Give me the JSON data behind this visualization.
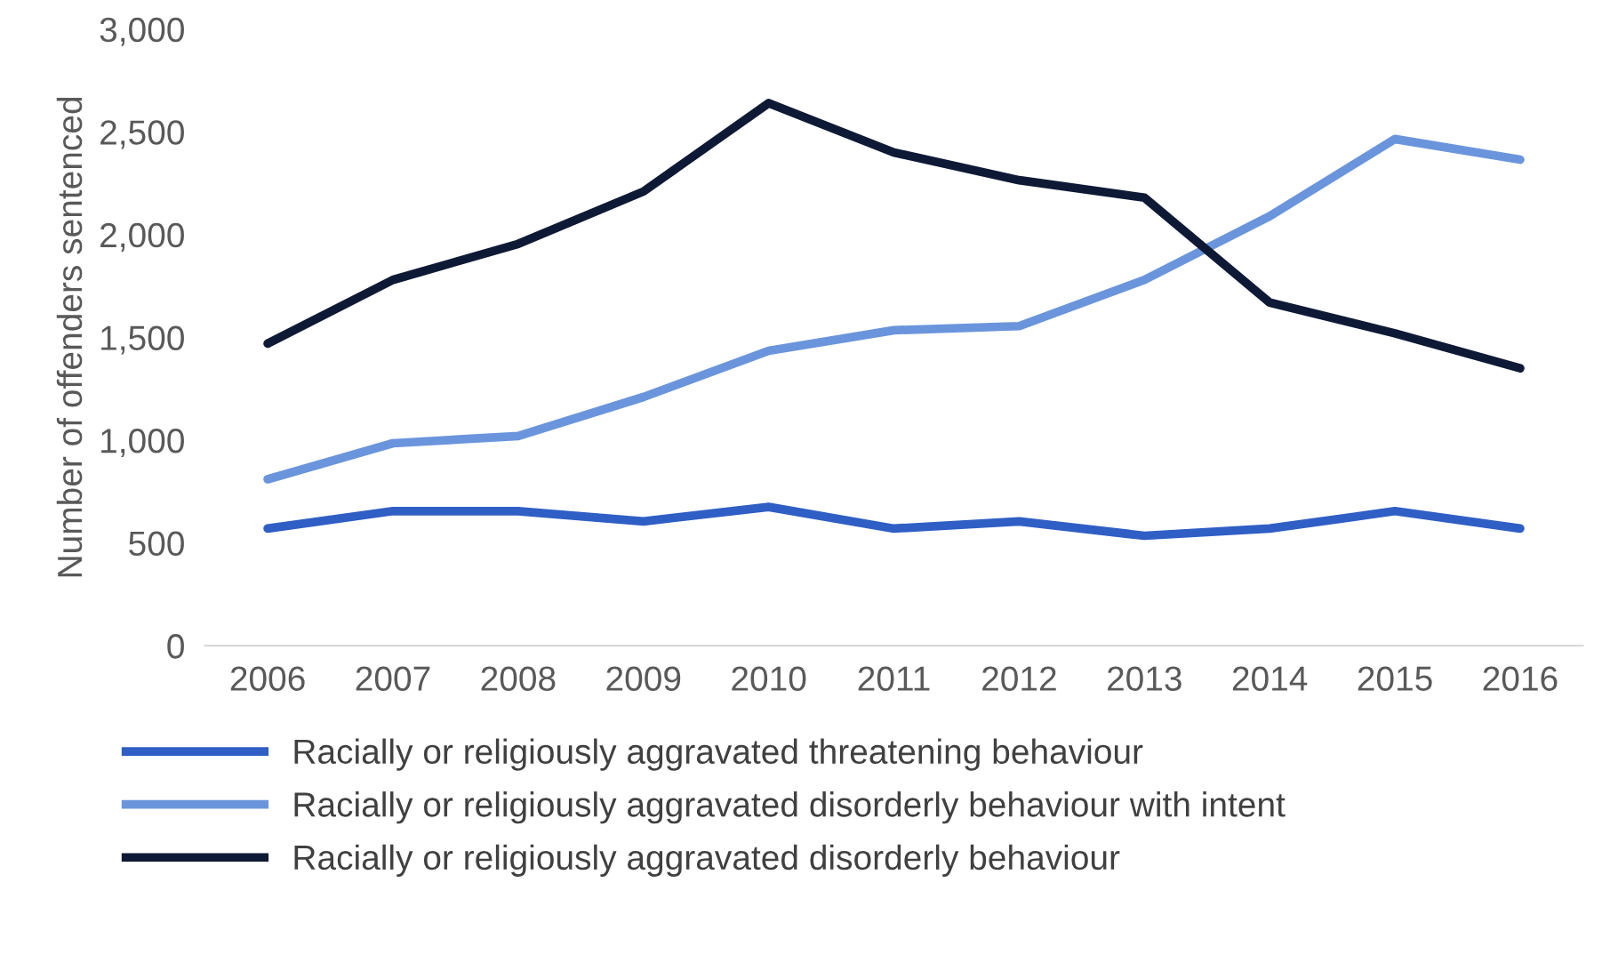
{
  "chart_data": {
    "type": "line",
    "ylabel": "Number of offenders sentenced",
    "categories": [
      "2006",
      "2007",
      "2008",
      "2009",
      "2010",
      "2011",
      "2012",
      "2013",
      "2014",
      "2015",
      "2016"
    ],
    "series": [
      {
        "name": "Racially or religiously aggravated threatening behaviour",
        "color": "#2f5fc4",
        "values": [
          570,
          655,
          655,
          605,
          675,
          570,
          605,
          535,
          570,
          655,
          570
        ]
      },
      {
        "name": "Racially or religiously aggravated disorderly behaviour with intent",
        "color": "#6a95dc",
        "values": [
          810,
          985,
          1020,
          1210,
          1435,
          1535,
          1555,
          1780,
          2090,
          2465,
          2365
        ]
      },
      {
        "name": "Racially or religiously aggravated disorderly behaviour",
        "color": "#0e1a35",
        "values": [
          1470,
          1780,
          1955,
          2210,
          2640,
          2400,
          2265,
          2180,
          1670,
          1520,
          1350
        ]
      }
    ],
    "ylim": [
      0,
      3000
    ],
    "yticks": [
      {
        "value": 0,
        "label": "0"
      },
      {
        "value": 500,
        "label": "500"
      },
      {
        "value": 1000,
        "label": "1,000"
      },
      {
        "value": 1500,
        "label": "1,500"
      },
      {
        "value": 2000,
        "label": "2,000"
      },
      {
        "value": 2500,
        "label": "2,500"
      },
      {
        "value": 3000,
        "label": "3,000"
      }
    ],
    "grid": false,
    "legend": "bottom",
    "marker": "none",
    "line_style": "solid"
  }
}
